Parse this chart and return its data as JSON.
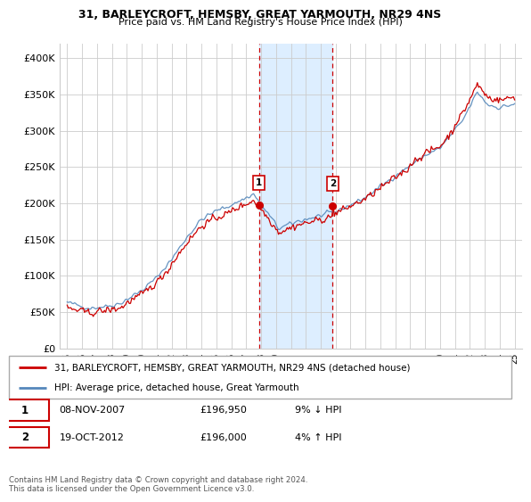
{
  "title1": "31, BARLEYCROFT, HEMSBY, GREAT YARMOUTH, NR29 4NS",
  "title2": "Price paid vs. HM Land Registry's House Price Index (HPI)",
  "legend_line1": "31, BARLEYCROFT, HEMSBY, GREAT YARMOUTH, NR29 4NS (detached house)",
  "legend_line2": "HPI: Average price, detached house, Great Yarmouth",
  "annotation1_date": "08-NOV-2007",
  "annotation1_price": "£196,950",
  "annotation1_hpi": "9% ↓ HPI",
  "annotation2_date": "19-OCT-2012",
  "annotation2_price": "£196,000",
  "annotation2_hpi": "4% ↑ HPI",
  "footer": "Contains HM Land Registry data © Crown copyright and database right 2024.\nThis data is licensed under the Open Government Licence v3.0.",
  "sale1_x": 2007.86,
  "sale1_y": 196950,
  "sale2_x": 2012.8,
  "sale2_y": 196000,
  "hpi_color": "#5588bb",
  "price_color": "#cc0000",
  "shade_color": "#ddeeff",
  "vline_color": "#cc0000",
  "ylim_min": 0,
  "ylim_max": 420000,
  "xlim_min": 1994.5,
  "xlim_max": 2025.5,
  "yticks": [
    0,
    50000,
    100000,
    150000,
    200000,
    250000,
    300000,
    350000,
    400000
  ],
  "ytick_labels": [
    "£0",
    "£50K",
    "£100K",
    "£150K",
    "£200K",
    "£250K",
    "£300K",
    "£350K",
    "£400K"
  ],
  "xticks": [
    1995,
    1996,
    1997,
    1998,
    1999,
    2000,
    2001,
    2002,
    2003,
    2004,
    2005,
    2006,
    2007,
    2008,
    2009,
    2010,
    2011,
    2012,
    2013,
    2014,
    2015,
    2016,
    2017,
    2018,
    2019,
    2020,
    2021,
    2022,
    2023,
    2024,
    2025
  ],
  "xtick_labels": [
    "95",
    "96",
    "97",
    "98",
    "99",
    "00",
    "01",
    "02",
    "03",
    "04",
    "05",
    "06",
    "07",
    "08",
    "09",
    "10",
    "11",
    "12",
    "13",
    "14",
    "15",
    "16",
    "17",
    "18",
    "19",
    "20",
    "21",
    "22",
    "23",
    "24",
    "25"
  ]
}
